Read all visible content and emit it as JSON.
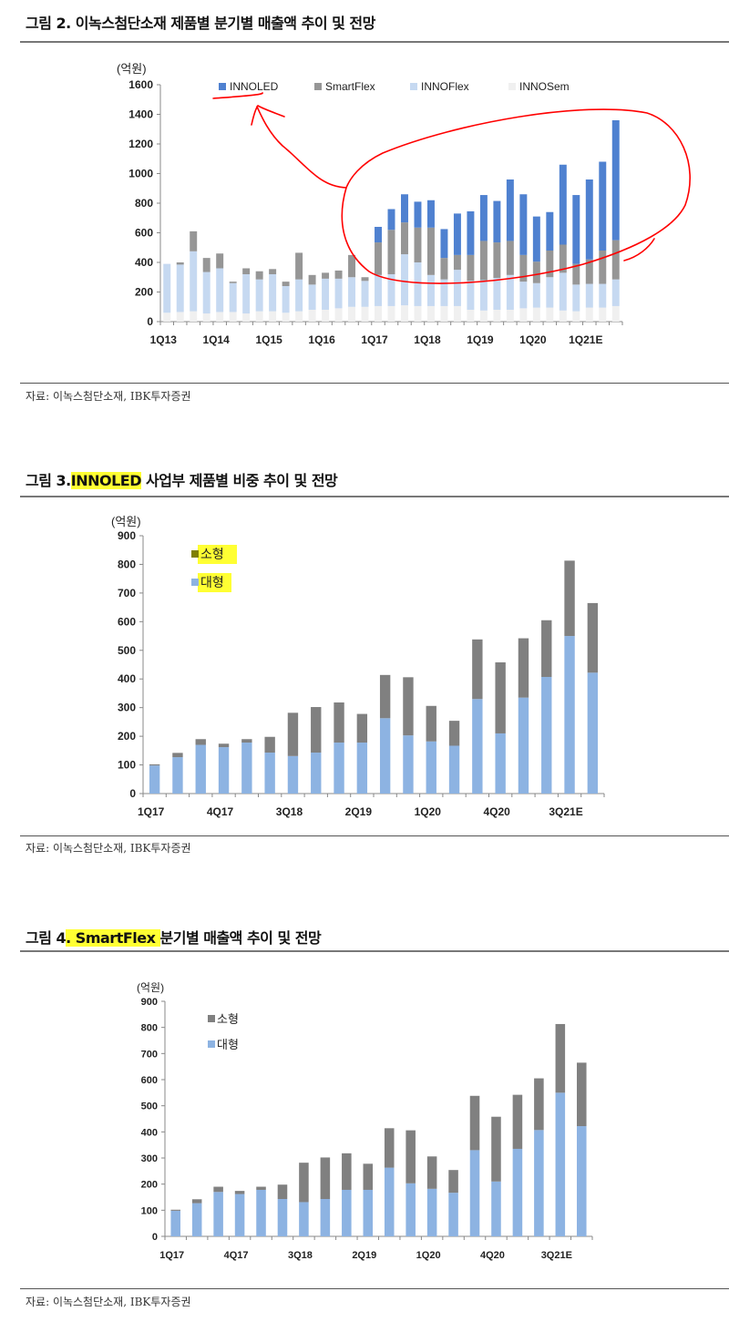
{
  "figure2": {
    "title": "그림 2. 이녹스첨단소재 제품별 분기별 매출액 추이 및 전망",
    "source": "자료: 이녹스첨단소재, IBK투자증권"
  },
  "figure3": {
    "title_prefix": "그림 3.",
    "title_highlight": "INNOLED",
    "title_rest": " 사업부 제품별 비중 추이 및 전망",
    "source": "자료: 이녹스첨단소재, IBK투자증권"
  },
  "figure4": {
    "title_prefix": "그림 4",
    "title_highlight": ". SmartFlex ",
    "title_rest": "분기별 매출액 추이 및 전망",
    "source": "자료: 이녹스첨단소재, IBK투자증권"
  },
  "chart_data": [
    {
      "type": "bar",
      "stacked": true,
      "ylabel": "(억원)",
      "ylim": [
        0,
        1600
      ],
      "yticks": [
        0,
        200,
        400,
        600,
        800,
        1000,
        1200,
        1400,
        1600
      ],
      "xtick_labels": [
        "1Q13",
        "1Q14",
        "1Q15",
        "1Q16",
        "1Q17",
        "1Q18",
        "1Q19",
        "1Q20",
        "1Q21E"
      ],
      "xtick_every": 4,
      "legend": "top",
      "categories": [
        "1Q13",
        "2Q13",
        "3Q13",
        "4Q13",
        "1Q14",
        "2Q14",
        "3Q14",
        "4Q14",
        "1Q15",
        "2Q15",
        "3Q15",
        "4Q15",
        "1Q16",
        "2Q16",
        "3Q16",
        "4Q16",
        "1Q17",
        "2Q17",
        "3Q17",
        "4Q17",
        "1Q18",
        "2Q18",
        "3Q18",
        "4Q18",
        "1Q19",
        "2Q19",
        "3Q19",
        "4Q19",
        "1Q20",
        "2Q20",
        "3Q20",
        "4Q20",
        "1Q21E",
        "2Q21E",
        "3Q21E"
      ],
      "series": [
        {
          "name": "INNOSem",
          "color": "#f0f0f0",
          "values": [
            60,
            65,
            70,
            55,
            65,
            65,
            55,
            70,
            70,
            60,
            70,
            80,
            80,
            90,
            100,
            100,
            105,
            105,
            110,
            105,
            105,
            105,
            105,
            80,
            75,
            80,
            80,
            90,
            95,
            95,
            75,
            70,
            95,
            95,
            105
          ]
        },
        {
          "name": "INNOFlex",
          "color": "#c6d9f1",
          "values": [
            330,
            320,
            405,
            280,
            295,
            195,
            265,
            215,
            250,
            180,
            215,
            170,
            210,
            200,
            200,
            175,
            210,
            215,
            345,
            295,
            210,
            180,
            245,
            195,
            205,
            215,
            235,
            180,
            165,
            205,
            255,
            180,
            160,
            160,
            180
          ]
        },
        {
          "name": "SmartFlex",
          "color": "#969696",
          "values": [
            0,
            15,
            135,
            95,
            100,
            10,
            40,
            55,
            35,
            30,
            180,
            65,
            40,
            55,
            150,
            25,
            220,
            300,
            215,
            235,
            320,
            145,
            100,
            175,
            265,
            240,
            230,
            180,
            145,
            180,
            190,
            140,
            165,
            225,
            265
          ]
        },
        {
          "name": "INNOLED",
          "color": "#4f81d0",
          "values": [
            0,
            0,
            0,
            0,
            0,
            0,
            0,
            0,
            0,
            0,
            0,
            0,
            0,
            0,
            0,
            0,
            105,
            140,
            190,
            175,
            185,
            195,
            280,
            295,
            310,
            280,
            415,
            410,
            305,
            260,
            540,
            465,
            540,
            600,
            810
          ]
        }
      ],
      "legend_order": [
        "INNOLED",
        "SmartFlex",
        "INNOFlex",
        "INNOSem"
      ],
      "annotation_color": "#ff0000"
    },
    {
      "type": "bar",
      "stacked": true,
      "ylabel": "(억원)",
      "ylim": [
        0,
        900
      ],
      "yticks": [
        0,
        100,
        200,
        300,
        400,
        500,
        600,
        700,
        800,
        900
      ],
      "xtick_labels": [
        "1Q17",
        "4Q17",
        "3Q18",
        "2Q19",
        "1Q20",
        "4Q20",
        "3Q21E"
      ],
      "xtick_every": 3,
      "legend": "top-left",
      "categories": [
        "1Q17",
        "2Q17",
        "3Q17",
        "4Q17",
        "1Q18",
        "2Q18",
        "3Q18",
        "4Q18",
        "1Q19",
        "2Q19",
        "3Q19",
        "4Q19",
        "1Q20",
        "2Q20",
        "3Q20",
        "4Q20",
        "1Q21E",
        "2Q21E",
        "3Q21E",
        "4Q21E"
      ],
      "series": [
        {
          "name": "대형",
          "color": "#8db3e2",
          "values": [
            98,
            127,
            170,
            162,
            178,
            143,
            131,
            143,
            178,
            178,
            263,
            203,
            182,
            167,
            330,
            210,
            335,
            407,
            550,
            422
          ]
        },
        {
          "name": "소형",
          "color": "#808080",
          "legend_color": "#7f7f00",
          "values": [
            4,
            15,
            20,
            12,
            12,
            55,
            151,
            159,
            140,
            100,
            151,
            203,
            124,
            87,
            208,
            248,
            207,
            198,
            263,
            243
          ]
        }
      ],
      "legend_order": [
        "소형",
        "대형"
      ],
      "legend_highlight": "#ffff33"
    },
    {
      "type": "bar",
      "stacked": true,
      "ylabel": "(억원)",
      "ylim": [
        0,
        900
      ],
      "yticks": [
        0,
        100,
        200,
        300,
        400,
        500,
        600,
        700,
        800,
        900
      ],
      "xtick_labels": [
        "1Q17",
        "4Q17",
        "3Q18",
        "2Q19",
        "1Q20",
        "4Q20",
        "3Q21E"
      ],
      "xtick_every": 3,
      "legend": "top-left",
      "categories": [
        "1Q17",
        "2Q17",
        "3Q17",
        "4Q17",
        "1Q18",
        "2Q18",
        "3Q18",
        "4Q18",
        "1Q19",
        "2Q19",
        "3Q19",
        "4Q19",
        "1Q20",
        "2Q20",
        "3Q20",
        "4Q20",
        "1Q21E",
        "2Q21E",
        "3Q21E",
        "4Q21E"
      ],
      "series": [
        {
          "name": "대형",
          "color": "#8db3e2",
          "values": [
            98,
            127,
            170,
            162,
            178,
            143,
            131,
            143,
            178,
            178,
            263,
            203,
            182,
            167,
            330,
            210,
            335,
            407,
            550,
            422
          ]
        },
        {
          "name": "소형",
          "color": "#808080",
          "values": [
            4,
            15,
            20,
            12,
            12,
            55,
            151,
            159,
            140,
            100,
            151,
            203,
            124,
            87,
            208,
            248,
            207,
            198,
            263,
            243
          ]
        }
      ],
      "legend_order": [
        "소형",
        "대형"
      ]
    }
  ]
}
